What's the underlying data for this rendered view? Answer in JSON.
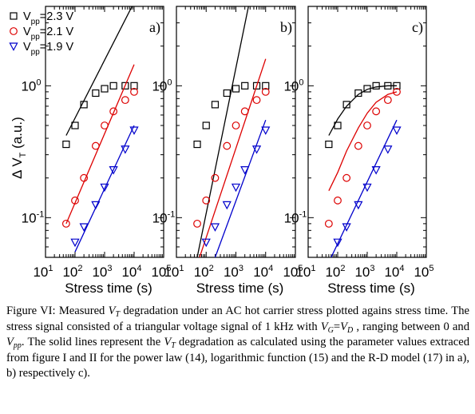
{
  "chart_data": [
    {
      "type": "scatter",
      "panel_label": "a)",
      "xlabel": "Stress time (s)",
      "ylabel": "ΔV_T (a.u.)",
      "xscale": "log",
      "yscale": "log",
      "xlim": [
        10,
        100000
      ],
      "ylim": [
        0.05,
        4
      ],
      "x_tick_labels": [
        "10^1",
        "10^2",
        "10^3",
        "10^4",
        "10^5"
      ],
      "y_tick_labels": [
        "10^-1",
        "10^0"
      ],
      "legend": [
        "V_pp=2.3 V",
        "V_pp=2.1 V",
        "V_pp=1.9 V"
      ],
      "series": [
        {
          "name": "V_pp=2.3 V",
          "color": "#000000",
          "marker": "square",
          "x": [
            50,
            100,
            200,
            500,
            1000,
            2000,
            5000,
            10000
          ],
          "y": [
            0.36,
            0.5,
            0.72,
            0.88,
            0.95,
            1.0,
            1.0,
            1.0
          ],
          "fit": {
            "x": [
              50,
              10000
            ],
            "y": [
              0.42,
              4.3
            ]
          }
        },
        {
          "name": "V_pp=2.1 V",
          "color": "#dd0000",
          "marker": "circle",
          "x": [
            50,
            100,
            200,
            500,
            1000,
            2000,
            5000,
            10000
          ],
          "y": [
            0.09,
            0.135,
            0.2,
            0.35,
            0.5,
            0.64,
            0.78,
            0.9
          ],
          "fit": {
            "x": [
              50,
              10000
            ],
            "y": [
              0.09,
              1.45
            ]
          }
        },
        {
          "name": "V_pp=1.9 V",
          "color": "#0000cc",
          "marker": "triangle-down",
          "x": [
            100,
            200,
            500,
            1000,
            2000,
            5000,
            10000
          ],
          "y": [
            0.065,
            0.085,
            0.125,
            0.17,
            0.23,
            0.33,
            0.46
          ],
          "fit": {
            "x": [
              100,
              10000
            ],
            "y": [
              0.055,
              0.5
            ]
          }
        }
      ]
    },
    {
      "type": "scatter",
      "panel_label": "b)",
      "xlabel": "Stress time (s)",
      "xscale": "log",
      "yscale": "log",
      "xlim": [
        10,
        100000
      ],
      "ylim": [
        0.05,
        4
      ],
      "x_tick_labels": [
        "10^1",
        "10^2",
        "10^3",
        "10^4",
        "10^5"
      ],
      "y_tick_labels": [
        "10^-1",
        "10^0"
      ],
      "series": [
        {
          "name": "V_pp=2.3 V",
          "color": "#000000",
          "marker": "square",
          "x": [
            50,
            100,
            200,
            500,
            1000,
            2000,
            5000,
            10000
          ],
          "y": [
            0.36,
            0.5,
            0.72,
            0.88,
            0.95,
            1.0,
            1.0,
            1.0
          ],
          "fit": {
            "x": [
              50,
              3000
            ],
            "y": [
              0.05,
              4.6
            ]
          }
        },
        {
          "name": "V_pp=2.1 V",
          "color": "#dd0000",
          "marker": "circle",
          "x": [
            50,
            100,
            200,
            500,
            1000,
            2000,
            5000,
            10000
          ],
          "y": [
            0.09,
            0.135,
            0.2,
            0.35,
            0.5,
            0.64,
            0.78,
            0.9
          ],
          "fit": {
            "x": [
              60,
              10000
            ],
            "y": [
              0.05,
              1.6
            ]
          }
        },
        {
          "name": "V_pp=1.9 V",
          "color": "#0000cc",
          "marker": "triangle-down",
          "x": [
            100,
            200,
            500,
            1000,
            2000,
            5000,
            10000
          ],
          "y": [
            0.065,
            0.085,
            0.125,
            0.17,
            0.23,
            0.33,
            0.46
          ],
          "fit": {
            "x": [
              200,
              10000
            ],
            "y": [
              0.05,
              0.55
            ]
          }
        }
      ]
    },
    {
      "type": "scatter",
      "panel_label": "c)",
      "xlabel": "Stress time (s)",
      "xscale": "log",
      "yscale": "log",
      "xlim": [
        10,
        100000
      ],
      "ylim": [
        0.05,
        4
      ],
      "x_tick_labels": [
        "10^1",
        "10^2",
        "10^3",
        "10^4",
        "10^5"
      ],
      "y_tick_labels": [
        "10^-1",
        "10^0"
      ],
      "series": [
        {
          "name": "V_pp=2.3 V",
          "color": "#000000",
          "marker": "square",
          "x": [
            50,
            100,
            200,
            500,
            1000,
            2000,
            5000,
            10000
          ],
          "y": [
            0.36,
            0.5,
            0.72,
            0.88,
            0.95,
            1.0,
            1.0,
            1.0
          ],
          "fit": {
            "x": [
              50,
              100,
              200,
              500,
              1000,
              2000,
              5000,
              10000
            ],
            "y": [
              0.42,
              0.56,
              0.7,
              0.86,
              0.94,
              0.98,
              1.0,
              1.0
            ]
          }
        },
        {
          "name": "V_pp=2.1 V",
          "color": "#dd0000",
          "marker": "circle",
          "x": [
            50,
            100,
            200,
            500,
            1000,
            2000,
            5000,
            10000
          ],
          "y": [
            0.09,
            0.135,
            0.2,
            0.35,
            0.5,
            0.64,
            0.78,
            0.9
          ],
          "fit": {
            "x": [
              50,
              100,
              200,
              500,
              1000,
              2000,
              5000,
              10000
            ],
            "y": [
              0.16,
              0.22,
              0.32,
              0.48,
              0.62,
              0.75,
              0.86,
              0.9
            ]
          }
        },
        {
          "name": "V_pp=1.9 V",
          "color": "#0000cc",
          "marker": "triangle-down",
          "x": [
            100,
            200,
            500,
            1000,
            2000,
            5000,
            10000
          ],
          "y": [
            0.065,
            0.085,
            0.125,
            0.17,
            0.23,
            0.33,
            0.46
          ],
          "fit": {
            "x": [
              60,
              10000
            ],
            "y": [
              0.05,
              0.55
            ]
          }
        }
      ]
    }
  ],
  "caption": {
    "p1": "Figure VI: Measured ",
    "vt1": "V",
    "vt1_sub": "T",
    "p2": " degradation under an AC hot carrier stress plotted agains stress time. The stress signal consisted of a triangular voltage signal of 1 kHz with ",
    "vg": "V",
    "vg_sub": "G",
    "eq": "=",
    "vd": "V",
    "vd_sub": "D",
    "p3": " , ranging between 0 and ",
    "vpp": "V",
    "vpp_sub": "pp",
    "p4": ". The solid lines represent the ",
    "vt2": "V",
    "vt2_sub": "T",
    "p5": " degradation as calculated using the parameter values extraced from figure I and II for the power law (14), logarithmic function (15) and the R-D model (17) in  a), b) respectively c)."
  }
}
